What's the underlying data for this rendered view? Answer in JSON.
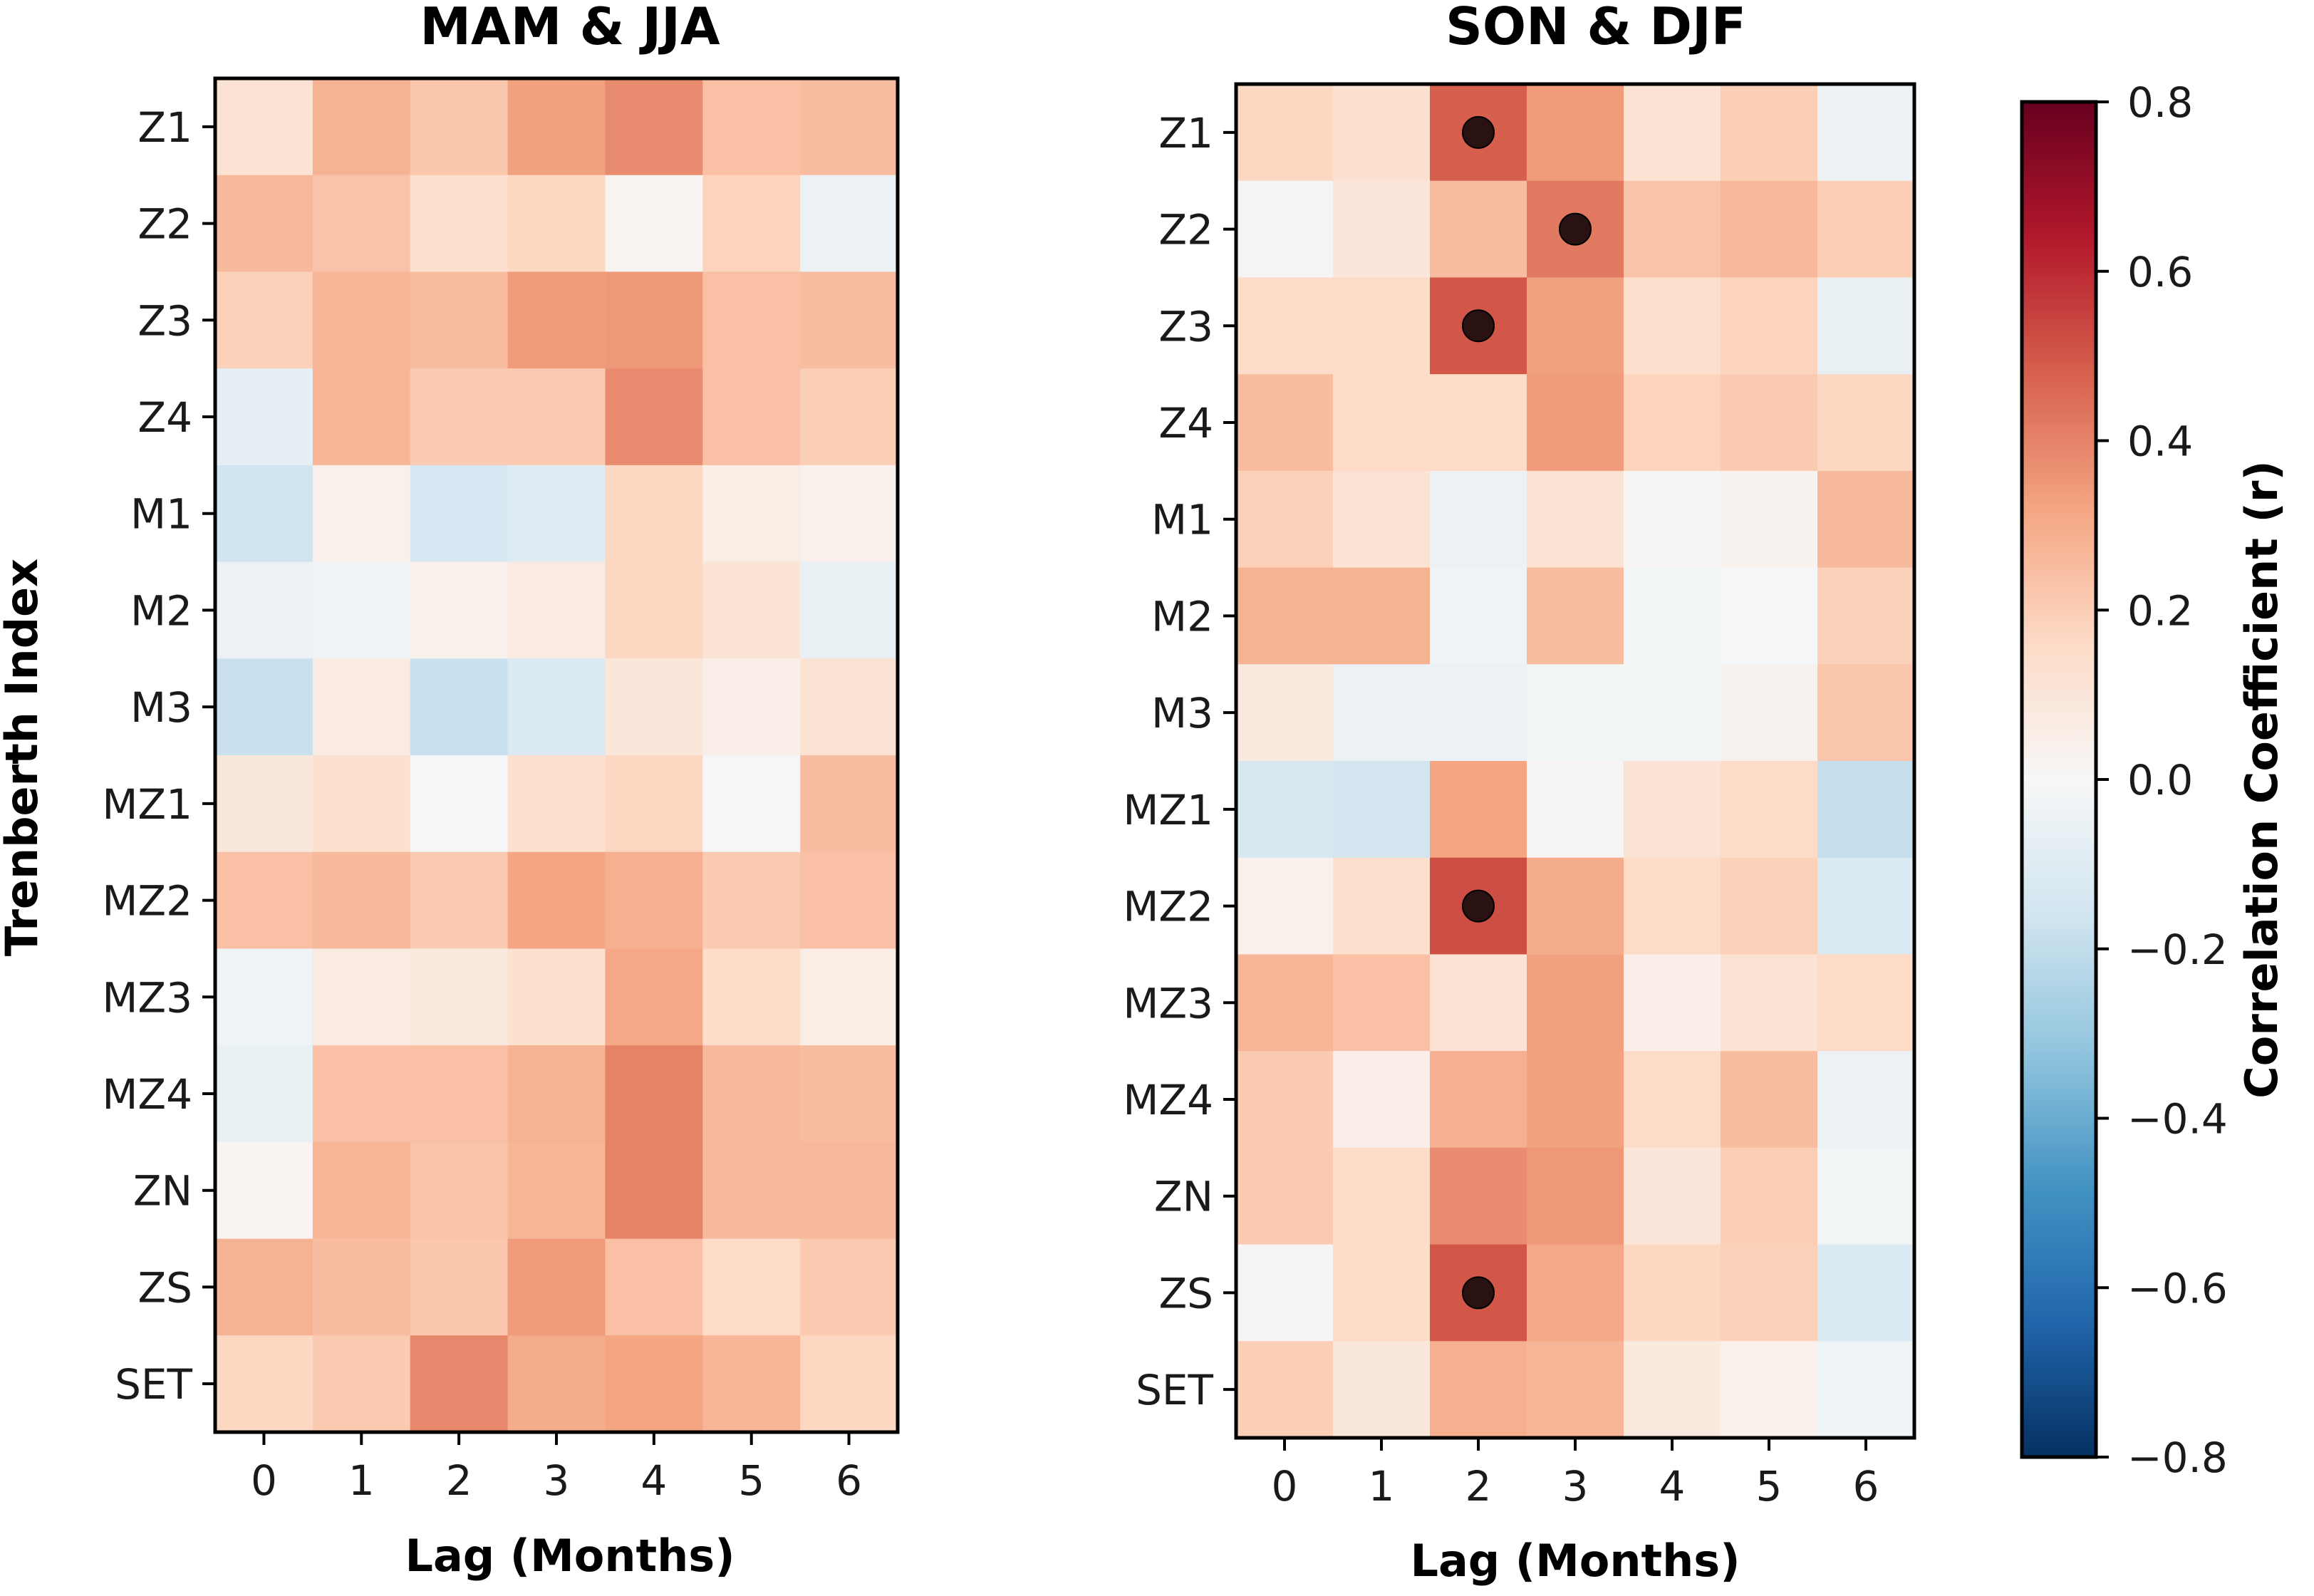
{
  "chart_data": [
    {
      "type": "heatmap",
      "title": "MAM & JJA",
      "xlabel": "Lag (Months)",
      "ylabel": "Trenberth Index",
      "x": [
        "0",
        "1",
        "2",
        "3",
        "4",
        "5",
        "6"
      ],
      "y": [
        "Z1",
        "Z2",
        "Z3",
        "Z4",
        "M1",
        "M2",
        "M3",
        "MZ1",
        "MZ2",
        "MZ3",
        "MZ4",
        "ZN",
        "ZS",
        "SET"
      ],
      "values": [
        [
          0.12,
          0.28,
          0.22,
          0.33,
          0.38,
          0.24,
          0.25
        ],
        [
          0.26,
          0.23,
          0.14,
          0.17,
          0.02,
          0.18,
          -0.05
        ],
        [
          0.19,
          0.27,
          0.25,
          0.34,
          0.35,
          0.24,
          0.25
        ],
        [
          -0.07,
          0.27,
          0.21,
          0.21,
          0.38,
          0.24,
          0.2
        ],
        [
          -0.16,
          0.04,
          -0.14,
          -0.1,
          0.17,
          0.06,
          0.04
        ],
        [
          -0.05,
          -0.03,
          0.04,
          0.07,
          0.17,
          0.11,
          -0.06
        ],
        [
          -0.18,
          0.07,
          -0.18,
          -0.12,
          0.1,
          0.05,
          0.12
        ],
        [
          0.09,
          0.13,
          -0.01,
          0.13,
          0.17,
          -0.01,
          0.25
        ],
        [
          0.24,
          0.26,
          0.21,
          0.32,
          0.29,
          0.21,
          0.24
        ],
        [
          -0.04,
          0.07,
          0.08,
          0.13,
          0.31,
          0.15,
          0.06
        ],
        [
          -0.06,
          0.24,
          0.24,
          0.28,
          0.4,
          0.26,
          0.25
        ],
        [
          0.02,
          0.27,
          0.23,
          0.27,
          0.4,
          0.26,
          0.26
        ],
        [
          0.28,
          0.25,
          0.22,
          0.34,
          0.24,
          0.16,
          0.21
        ],
        [
          0.17,
          0.21,
          0.39,
          0.3,
          0.32,
          0.27,
          0.17
        ]
      ],
      "significant": [],
      "colormap": "RdBu_r",
      "vmin": -0.8,
      "vmax": 0.8
    },
    {
      "type": "heatmap",
      "title": "SON & DJF",
      "xlabel": "Lag (Months)",
      "ylabel": "",
      "x": [
        "0",
        "1",
        "2",
        "3",
        "4",
        "5",
        "6"
      ],
      "y": [
        "Z1",
        "Z2",
        "Z3",
        "Z4",
        "M1",
        "M2",
        "M3",
        "MZ1",
        "MZ2",
        "MZ3",
        "MZ4",
        "ZN",
        "ZS",
        "SET"
      ],
      "values": [
        [
          0.17,
          0.13,
          0.48,
          0.34,
          0.12,
          0.2,
          -0.05
        ],
        [
          0.01,
          0.1,
          0.25,
          0.42,
          0.23,
          0.26,
          0.2
        ],
        [
          0.15,
          0.15,
          0.5,
          0.33,
          0.14,
          0.18,
          -0.06
        ],
        [
          0.25,
          0.16,
          0.16,
          0.34,
          0.18,
          0.21,
          0.17
        ],
        [
          0.19,
          0.12,
          -0.05,
          0.12,
          0.01,
          0.03,
          0.26
        ],
        [
          0.28,
          0.28,
          -0.04,
          0.25,
          -0.02,
          -0.01,
          0.19
        ],
        [
          0.08,
          -0.05,
          -0.05,
          -0.02,
          -0.02,
          0.03,
          0.22
        ],
        [
          -0.13,
          -0.15,
          0.32,
          0.01,
          0.12,
          0.16,
          -0.19
        ],
        [
          0.04,
          0.14,
          0.52,
          0.3,
          0.16,
          0.19,
          -0.12
        ],
        [
          0.27,
          0.24,
          0.11,
          0.33,
          0.05,
          0.12,
          0.16
        ],
        [
          0.21,
          0.05,
          0.29,
          0.33,
          0.16,
          0.25,
          -0.05
        ],
        [
          0.21,
          0.15,
          0.38,
          0.35,
          0.1,
          0.2,
          -0.02
        ],
        [
          0.01,
          0.15,
          0.5,
          0.31,
          0.17,
          0.19,
          -0.12
        ],
        [
          0.2,
          0.09,
          0.29,
          0.27,
          0.08,
          0.04,
          -0.04
        ]
      ],
      "significant": [
        [
          0,
          2
        ],
        [
          1,
          3
        ],
        [
          2,
          2
        ],
        [
          8,
          2
        ],
        [
          12,
          2
        ]
      ],
      "colormap": "RdBu_r",
      "vmin": -0.8,
      "vmax": 0.8
    }
  ],
  "colorbar": {
    "label": "Correlation Coefficient (r)",
    "ticks": [
      "0.8",
      "0.6",
      "0.4",
      "0.2",
      "0.0",
      "−0.2",
      "−0.4",
      "−0.6",
      "−0.8"
    ],
    "tick_values": [
      0.8,
      0.6,
      0.4,
      0.2,
      0.0,
      -0.2,
      -0.4,
      -0.6,
      -0.8
    ]
  }
}
